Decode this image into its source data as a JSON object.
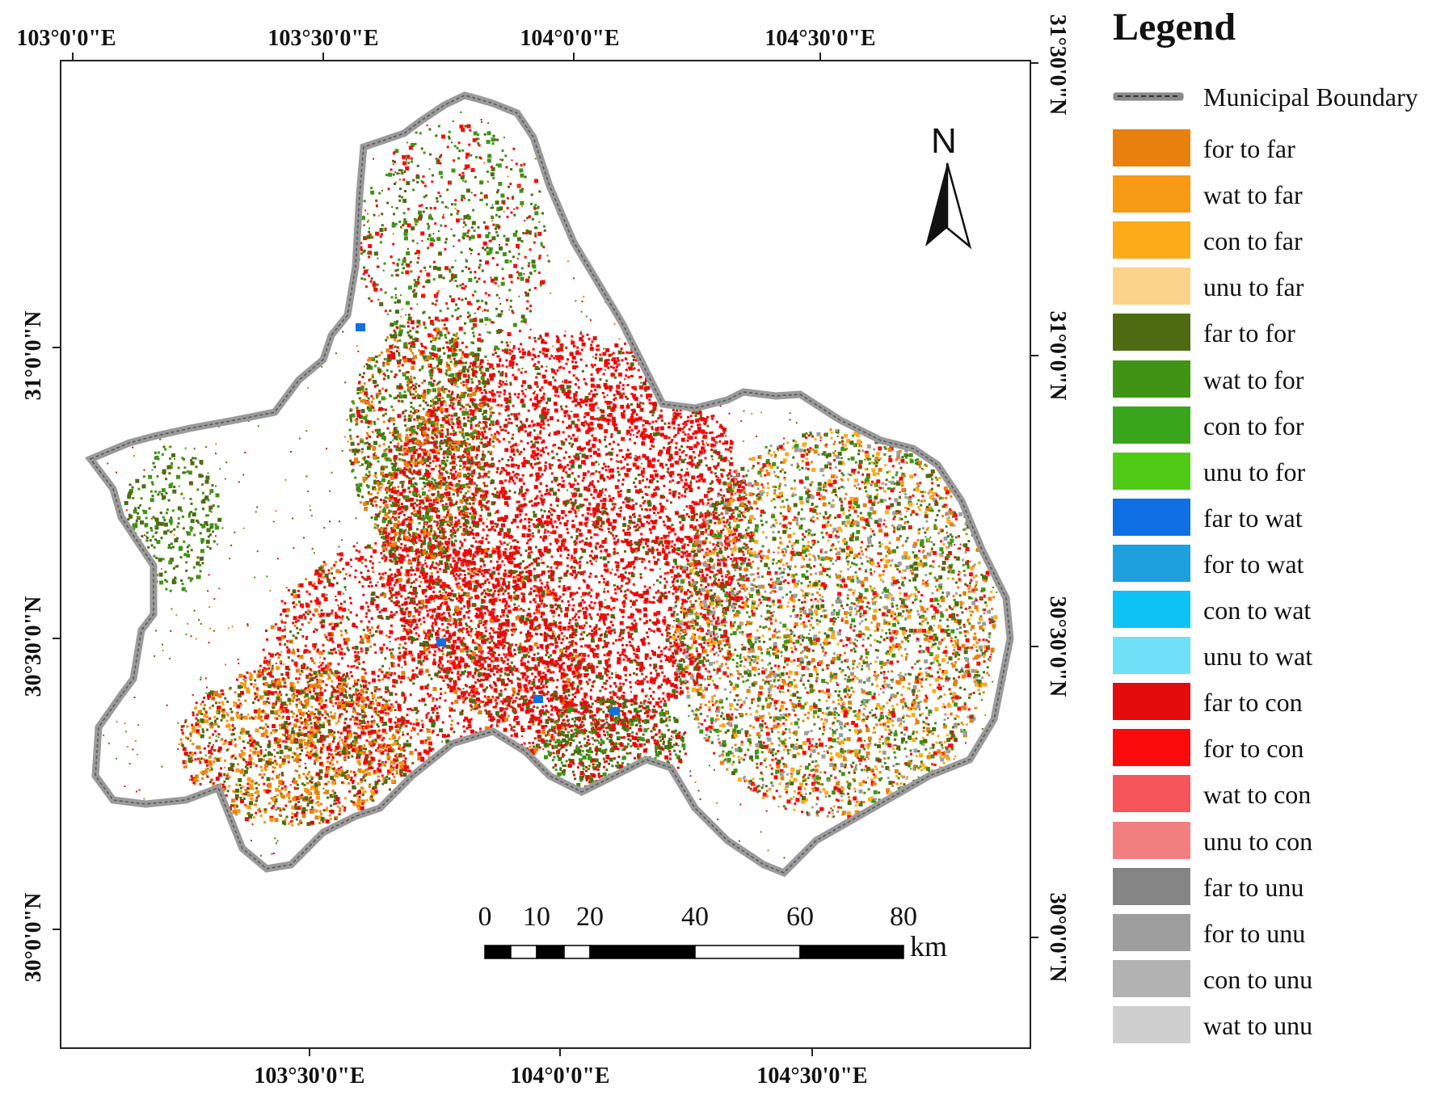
{
  "legend": {
    "title": "Legend",
    "boundary_label": "Municipal Boundary",
    "items": [
      {
        "label": "for to far",
        "color": "#E8800E"
      },
      {
        "label": "wat to far",
        "color": "#F79A14"
      },
      {
        "label": "con to far",
        "color": "#FBAC18"
      },
      {
        "label": "unu to far",
        "color": "#FCD38A"
      },
      {
        "label": "far to for",
        "color": "#4E6B12"
      },
      {
        "label": "wat to for",
        "color": "#3F9416"
      },
      {
        "label": "con to for",
        "color": "#39A51B"
      },
      {
        "label": "unu to for",
        "color": "#4FCB17"
      },
      {
        "label": "far to wat",
        "color": "#0E70E4"
      },
      {
        "label": "for to wat",
        "color": "#1FA0DE"
      },
      {
        "label": "con to wat",
        "color": "#0EC2F5"
      },
      {
        "label": "unu to wat",
        "color": "#6FE0F8"
      },
      {
        "label": "far to con",
        "color": "#E30B0B"
      },
      {
        "label": "for to con",
        "color": "#FA0A0A"
      },
      {
        "label": "wat to con",
        "color": "#F7555C"
      },
      {
        "label": "unu to con",
        "color": "#F17F80"
      },
      {
        "label": "far to unu",
        "color": "#848484"
      },
      {
        "label": "for to unu",
        "color": "#9E9E9E"
      },
      {
        "label": "con to unu",
        "color": "#B2B2B2"
      },
      {
        "label": "wat to unu",
        "color": "#CFCFCF"
      }
    ]
  },
  "axes": {
    "top_lon": [
      "103°0'0\"E",
      "103°30'0\"E",
      "104°0'0\"E",
      "104°30'0\"E"
    ],
    "bottom_lon": [
      "103°30'0\"E",
      "104°0'0\"E",
      "104°30'0\"E"
    ],
    "left_lat": [
      "31°0'0\"N",
      "30°30'0\"N",
      "30°0'0\"N"
    ],
    "right_lat": [
      "31°30'0\"N",
      "31°0'0\"N",
      "30°30'0\"N",
      "30°0'0\"N"
    ]
  },
  "north_arrow": {
    "label": "N"
  },
  "scale_bar": {
    "ticks": [
      "0",
      "10",
      "20",
      "40",
      "60",
      "80"
    ],
    "unit": "km"
  }
}
